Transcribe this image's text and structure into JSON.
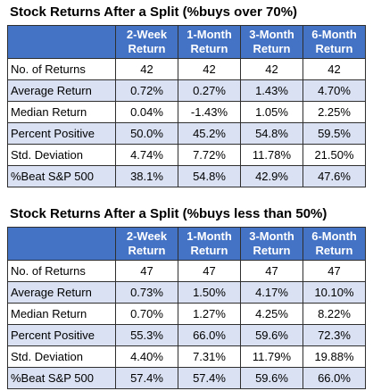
{
  "tables": [
    {
      "title": "Stock Returns After a Split (%buys over 70%)",
      "columns": [
        {
          "line1": "2-Week",
          "line2": "Return"
        },
        {
          "line1": "1-Month",
          "line2": "Return"
        },
        {
          "line1": "3-Month",
          "line2": "Return"
        },
        {
          "line1": "6-Month",
          "line2": "Return"
        }
      ],
      "rows": [
        {
          "label": "No. of Returns",
          "values": [
            "42",
            "42",
            "42",
            "42"
          ]
        },
        {
          "label": "Average Return",
          "values": [
            "0.72%",
            "0.27%",
            "1.43%",
            "4.70%"
          ]
        },
        {
          "label": "Median Return",
          "values": [
            "0.04%",
            "-1.43%",
            "1.05%",
            "2.25%"
          ]
        },
        {
          "label": "Percent Positive",
          "values": [
            "50.0%",
            "45.2%",
            "54.8%",
            "59.5%"
          ]
        },
        {
          "label": "Std. Deviation",
          "values": [
            "4.74%",
            "7.72%",
            "11.78%",
            "21.50%"
          ]
        },
        {
          "label": "%Beat S&P 500",
          "values": [
            "38.1%",
            "54.8%",
            "42.9%",
            "47.6%"
          ]
        }
      ]
    },
    {
      "title": "Stock Returns After a Split (%buys less than 50%)",
      "columns": [
        {
          "line1": "2-Week",
          "line2": "Return"
        },
        {
          "line1": "1-Month",
          "line2": "Return"
        },
        {
          "line1": "3-Month",
          "line2": "Return"
        },
        {
          "line1": "6-Month",
          "line2": "Return"
        }
      ],
      "rows": [
        {
          "label": "No. of Returns",
          "values": [
            "47",
            "47",
            "47",
            "47"
          ]
        },
        {
          "label": "Average Return",
          "values": [
            "0.73%",
            "1.50%",
            "4.17%",
            "10.10%"
          ]
        },
        {
          "label": "Median Return",
          "values": [
            "0.70%",
            "1.27%",
            "4.25%",
            "8.22%"
          ]
        },
        {
          "label": "Percent Positive",
          "values": [
            "55.3%",
            "66.0%",
            "59.6%",
            "72.3%"
          ]
        },
        {
          "label": "Std. Deviation",
          "values": [
            "4.40%",
            "7.31%",
            "11.79%",
            "19.88%"
          ]
        },
        {
          "label": "%Beat S&P 500",
          "values": [
            "57.4%",
            "57.4%",
            "59.6%",
            "66.0%"
          ]
        }
      ]
    }
  ],
  "colors": {
    "header_bg": "#4472c4",
    "header_text": "#ffffff",
    "band_row": "#d9e1f2",
    "border": "#2f2f2f"
  }
}
